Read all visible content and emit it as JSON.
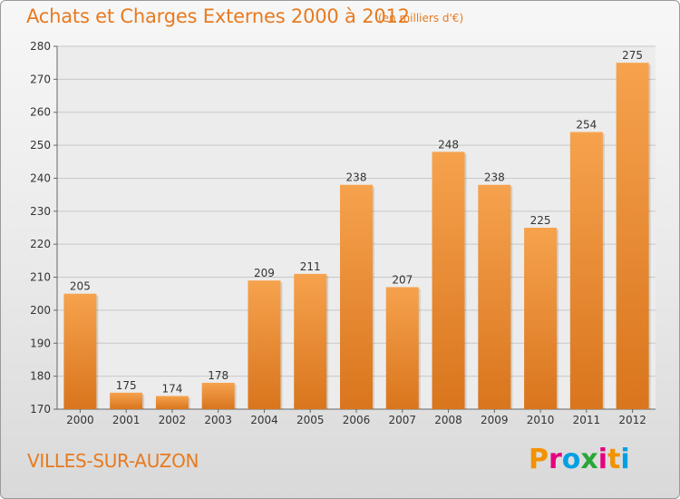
{
  "title": "Achats et Charges Externes 2000 à 2012",
  "units": "(en milliers d'€)",
  "place": "VILLES-SUR-AUZON",
  "logo": {
    "letters": [
      "P",
      "r",
      "o",
      "x",
      "i",
      "t",
      "i"
    ],
    "colors": [
      "#f39200",
      "#e5007e",
      "#00a0e3",
      "#2aa639",
      "#e5007e",
      "#f39200",
      "#00a0e3"
    ]
  },
  "colors": {
    "bar_light": "#f6a24d",
    "bar_dark": "#d9751d",
    "text_accent": "#e87a1f",
    "grid": "#c8c8c8"
  },
  "chart_data": {
    "type": "bar",
    "categories": [
      "2000",
      "2001",
      "2002",
      "2003",
      "2004",
      "2005",
      "2006",
      "2007",
      "2008",
      "2009",
      "2010",
      "2011",
      "2012"
    ],
    "values": [
      205,
      175,
      174,
      178,
      209,
      211,
      238,
      207,
      248,
      238,
      225,
      254,
      275
    ],
    "ylim": [
      170,
      280
    ],
    "yticks": [
      170,
      180,
      190,
      200,
      210,
      220,
      230,
      240,
      250,
      260,
      270,
      280
    ],
    "grid": true
  }
}
